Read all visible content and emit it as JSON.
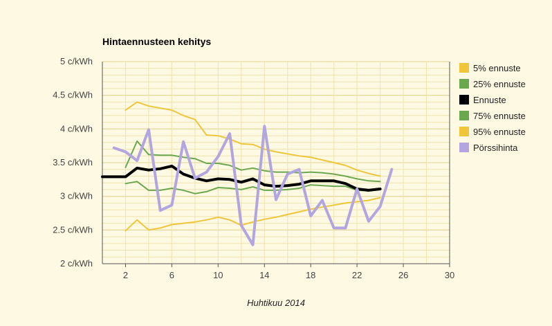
{
  "chart_data": {
    "type": "line",
    "title": "Hintaennusteen kehitys",
    "xlabel": "Huhtikuu 2014",
    "ylabel": "",
    "xlim": [
      0,
      30
    ],
    "ylim": [
      2,
      5
    ],
    "x_ticks": [
      2,
      6,
      10,
      14,
      18,
      22,
      26,
      30
    ],
    "y_ticks": [
      {
        "value": 2,
        "label": "2 c/kWh"
      },
      {
        "value": 2.5,
        "label": "2.5 c/kWh"
      },
      {
        "value": 3,
        "label": "3 c/kWh"
      },
      {
        "value": 3.5,
        "label": "3.5 c/kWh"
      },
      {
        "value": 4,
        "label": "4 c/kWh"
      },
      {
        "value": 4.5,
        "label": "4.5 c/kWh"
      },
      {
        "value": 5,
        "label": "5 c/kWh"
      }
    ],
    "grid": true,
    "legend_position": "right",
    "series": [
      {
        "name": "5% ennuste",
        "color": "#f0c53a",
        "width": 2,
        "x": [
          2,
          3,
          4,
          5,
          6,
          7,
          8,
          9,
          10,
          11,
          12,
          13,
          14,
          15,
          16,
          17,
          18,
          19,
          20,
          21,
          22,
          23,
          24
        ],
        "y": [
          2.49,
          2.65,
          2.5,
          2.53,
          2.58,
          2.6,
          2.62,
          2.65,
          2.69,
          2.65,
          2.57,
          2.62,
          2.66,
          2.69,
          2.73,
          2.77,
          2.81,
          2.84,
          2.87,
          2.9,
          2.92,
          2.94,
          2.98
        ]
      },
      {
        "name": "25% ennuste",
        "color": "#6aa84f",
        "width": 2,
        "x": [
          2,
          3,
          4,
          5,
          6,
          7,
          8,
          9,
          10,
          11,
          12,
          13,
          14,
          15,
          16,
          17,
          18,
          19,
          20,
          21,
          22,
          23,
          24
        ],
        "y": [
          3.19,
          3.22,
          3.09,
          3.09,
          3.12,
          3.09,
          3.04,
          3.07,
          3.13,
          3.12,
          3.1,
          3.14,
          3.09,
          3.09,
          3.1,
          3.12,
          3.17,
          3.16,
          3.15,
          3.15,
          3.09,
          3.08,
          3.1
        ]
      },
      {
        "name": "Ennuste",
        "color": "#000000",
        "width": 4,
        "x": [
          0,
          1,
          2,
          3,
          4,
          5,
          6,
          7,
          8,
          9,
          10,
          11,
          12,
          13,
          14,
          15,
          16,
          17,
          18,
          19,
          20,
          21,
          22,
          23,
          24
        ],
        "y": [
          3.29,
          3.29,
          3.29,
          3.42,
          3.39,
          3.41,
          3.45,
          3.33,
          3.27,
          3.23,
          3.26,
          3.25,
          3.21,
          3.26,
          3.17,
          3.15,
          3.16,
          3.18,
          3.23,
          3.23,
          3.23,
          3.19,
          3.11,
          3.09,
          3.11
        ]
      },
      {
        "name": "75% ennuste",
        "color": "#6aa84f",
        "width": 2,
        "x": [
          2,
          3,
          4,
          5,
          6,
          7,
          8,
          9,
          10,
          11,
          12,
          13,
          14,
          15,
          16,
          17,
          18,
          19,
          20,
          21,
          22,
          23,
          24
        ],
        "y": [
          3.43,
          3.82,
          3.62,
          3.61,
          3.61,
          3.58,
          3.56,
          3.49,
          3.49,
          3.46,
          3.39,
          3.42,
          3.38,
          3.36,
          3.36,
          3.35,
          3.36,
          3.35,
          3.33,
          3.3,
          3.26,
          3.23,
          3.22
        ]
      },
      {
        "name": "95% ennuste",
        "color": "#f0c53a",
        "width": 2,
        "x": [
          2,
          3,
          4,
          5,
          6,
          7,
          8,
          9,
          10,
          11,
          12,
          13,
          14,
          15,
          16,
          17,
          18,
          19,
          20,
          21,
          22,
          23,
          24
        ],
        "y": [
          4.28,
          4.4,
          4.34,
          4.31,
          4.28,
          4.2,
          4.14,
          3.91,
          3.9,
          3.85,
          3.78,
          3.77,
          3.7,
          3.66,
          3.63,
          3.6,
          3.58,
          3.54,
          3.5,
          3.46,
          3.39,
          3.34,
          3.3
        ]
      },
      {
        "name": "Pörssihinta",
        "color": "#b3a6e0",
        "width": 4,
        "x": [
          1,
          2,
          3,
          4,
          5,
          6,
          7,
          8,
          9,
          10,
          11,
          12,
          13,
          14,
          15,
          16,
          17,
          18,
          19,
          20,
          21,
          22,
          23,
          24,
          25
        ],
        "y": [
          3.72,
          3.66,
          3.53,
          3.99,
          2.79,
          2.87,
          3.81,
          3.27,
          3.36,
          3.59,
          3.93,
          2.57,
          2.28,
          4.04,
          2.95,
          3.33,
          3.4,
          2.71,
          2.94,
          2.53,
          2.53,
          3.11,
          2.63,
          2.85,
          3.4
        ]
      }
    ]
  }
}
